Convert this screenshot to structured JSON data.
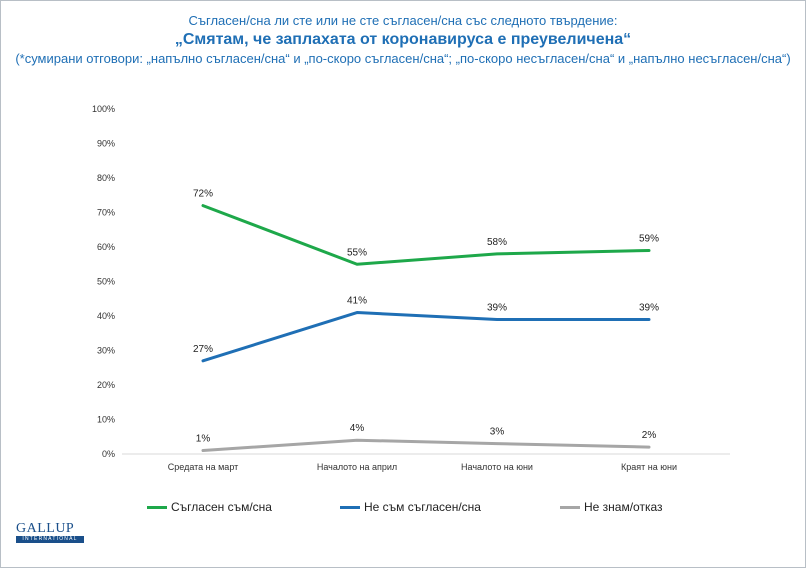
{
  "header": {
    "line1": "Съгласен/сна ли сте или не сте съгласен/сна със следното твърдение:",
    "line2": "„Смятам, че заплахата от коронавируса е преувеличена“",
    "line3": "(*сумирани отговори: „напълно съгласен/сна“ и „по-скоро съгласен/сна“; „по-скоро несъгласен/сна“ и „напълно несъгласен/сна“)"
  },
  "logo": {
    "main": "GALLUP",
    "sub": "INTERNATIONAL"
  },
  "chart_data": {
    "type": "line",
    "categories": [
      "Средата на март",
      "Началото на април",
      "Началото на юни",
      "Краят на юни"
    ],
    "series": [
      {
        "name": "Съгласен съм/сна",
        "color": "#1ea84a",
        "values": [
          72,
          55,
          58,
          59
        ],
        "labels": [
          "72%",
          "55%",
          "58%",
          "59%"
        ]
      },
      {
        "name": "Не съм съгласен/сна",
        "color": "#1f6fb5",
        "values": [
          27,
          41,
          39,
          39
        ],
        "labels": [
          "27%",
          "41%",
          "39%",
          "39%"
        ]
      },
      {
        "name": "Не знам/отказ",
        "color": "#a6a6a6",
        "values": [
          1,
          4,
          3,
          2
        ],
        "labels": [
          "1%",
          "4%",
          "3%",
          "2%"
        ]
      }
    ],
    "ylim": [
      0,
      100
    ],
    "yticks": [
      "0%",
      "10%",
      "20%",
      "30%",
      "40%",
      "50%",
      "60%",
      "70%",
      "80%",
      "90%",
      "100%"
    ],
    "grid": false,
    "legend": "bottom"
  }
}
